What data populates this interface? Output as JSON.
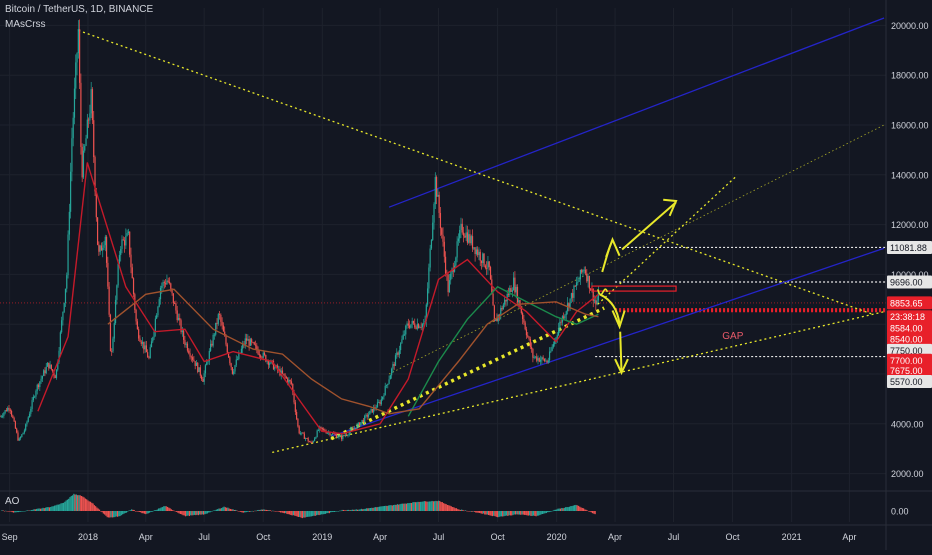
{
  "header": {
    "symbol": "Bitcoin / TetherUS, 1D, BINANCE",
    "indicator": "MAsCrss"
  },
  "ao_pane": {
    "title": "AO",
    "value_label": "0.00"
  },
  "colors": {
    "background": "#131722",
    "grid": "#1e222d",
    "candle_up": "#26a69a",
    "candle_down": "#ef5350",
    "ma_fast": "#c41a2a",
    "ma_mid": "#1b8a4c",
    "ma_slow": "#a0522d",
    "trend_blue": "#2424c8",
    "trend_yellow": "#e8e82a",
    "label_red": "#e8202a",
    "label_white": "#e6e6e6",
    "annotation": "#e8e82a",
    "gap": "#e85a6a"
  },
  "chart_data": {
    "type": "candlestick",
    "title": "Bitcoin / TetherUS, 1D, BINANCE",
    "x_ticks": [
      "Sep",
      "2018",
      "Apr",
      "Jul",
      "Oct",
      "2019",
      "Apr",
      "Jul",
      "Oct",
      "2020",
      "Apr",
      "Jul",
      "Oct",
      "2021",
      "Apr"
    ],
    "y_ticks": [
      2000,
      4000,
      6000,
      8000,
      10000,
      12000,
      14000,
      16000,
      18000,
      20000
    ],
    "y_tick_labels": [
      "2000.00",
      "4000.00",
      "6000.00",
      "8000.00",
      "10000.00",
      "12000.00",
      "14000.00",
      "16000.00",
      "18000.00",
      "20000.00"
    ],
    "ylim": [
      1300,
      20700
    ],
    "x_range": [
      "2017-08-17",
      "2021-05-28"
    ],
    "price_path": [
      [
        "2017-08-17",
        4300
      ],
      [
        "2017-09-01",
        4700
      ],
      [
        "2017-09-15",
        3300
      ],
      [
        "2017-09-25",
        3800
      ],
      [
        "2017-10-12",
        5400
      ],
      [
        "2017-10-31",
        6400
      ],
      [
        "2017-11-12",
        5900
      ],
      [
        "2017-11-29",
        10000
      ],
      [
        "2017-12-07",
        15500
      ],
      [
        "2017-12-17",
        19800
      ],
      [
        "2017-12-22",
        14000
      ],
      [
        "2018-01-06",
        17100
      ],
      [
        "2018-01-17",
        10700
      ],
      [
        "2018-01-28",
        11600
      ],
      [
        "2018-02-06",
        6500
      ],
      [
        "2018-02-20",
        11200
      ],
      [
        "2018-03-05",
        11500
      ],
      [
        "2018-03-18",
        7800
      ],
      [
        "2018-04-06",
        6600
      ],
      [
        "2018-04-24",
        9500
      ],
      [
        "2018-05-05",
        9800
      ],
      [
        "2018-05-30",
        7400
      ],
      [
        "2018-06-29",
        5800
      ],
      [
        "2018-07-24",
        8400
      ],
      [
        "2018-08-14",
        6100
      ],
      [
        "2018-09-04",
        7400
      ],
      [
        "2018-10-10",
        6500
      ],
      [
        "2018-11-14",
        5600
      ],
      [
        "2018-11-25",
        3700
      ],
      [
        "2018-12-15",
        3200
      ],
      [
        "2018-12-27",
        3800
      ],
      [
        "2019-01-31",
        3450
      ],
      [
        "2019-02-24",
        3900
      ],
      [
        "2019-04-02",
        4900
      ],
      [
        "2019-05-14",
        8000
      ],
      [
        "2019-06-10",
        8000
      ],
      [
        "2019-06-26",
        13800
      ],
      [
        "2019-07-16",
        9400
      ],
      [
        "2019-08-06",
        11900
      ],
      [
        "2019-09-18",
        10200
      ],
      [
        "2019-09-26",
        8000
      ],
      [
        "2019-10-26",
        9700
      ],
      [
        "2019-11-25",
        6700
      ],
      [
        "2019-12-18",
        6500
      ],
      [
        "2020-01-07",
        8100
      ],
      [
        "2020-02-13",
        10300
      ],
      [
        "2020-03-02",
        8800
      ],
      [
        "2020-03-06",
        9100
      ]
    ],
    "moving_averages": [
      {
        "id": "ma_fast",
        "points": [
          [
            "2017-10-15",
            4500
          ],
          [
            "2017-12-01",
            7500
          ],
          [
            "2017-12-31",
            14500
          ],
          [
            "2018-01-20",
            12800
          ],
          [
            "2018-03-01",
            9500
          ],
          [
            "2018-04-15",
            7700
          ],
          [
            "2018-06-01",
            7800
          ],
          [
            "2018-07-01",
            6500
          ],
          [
            "2018-08-15",
            6900
          ],
          [
            "2018-10-15",
            6500
          ],
          [
            "2018-11-25",
            5000
          ],
          [
            "2018-12-31",
            3700
          ],
          [
            "2019-02-01",
            3600
          ],
          [
            "2019-04-01",
            4000
          ],
          [
            "2019-05-15",
            5800
          ],
          [
            "2019-07-01",
            9800
          ],
          [
            "2019-08-15",
            10600
          ],
          [
            "2019-10-01",
            9300
          ],
          [
            "2019-11-15",
            8500
          ],
          [
            "2019-12-31",
            7300
          ],
          [
            "2020-02-01",
            8500
          ],
          [
            "2020-03-06",
            9200
          ]
        ]
      },
      {
        "id": "ma_mid",
        "points": [
          [
            "2019-05-15",
            4300
          ],
          [
            "2019-07-01",
            6500
          ],
          [
            "2019-08-15",
            8200
          ],
          [
            "2019-10-01",
            9500
          ],
          [
            "2019-11-15",
            8900
          ],
          [
            "2019-12-31",
            8300
          ],
          [
            "2020-02-01",
            8000
          ],
          [
            "2020-03-06",
            8400
          ]
        ]
      },
      {
        "id": "ma_slow",
        "points": [
          [
            "2018-02-01",
            8000
          ],
          [
            "2018-04-01",
            9200
          ],
          [
            "2018-05-15",
            9400
          ],
          [
            "2018-07-15",
            7800
          ],
          [
            "2018-09-15",
            7000
          ],
          [
            "2018-10-31",
            6800
          ],
          [
            "2018-12-15",
            5800
          ],
          [
            "2019-01-31",
            5000
          ],
          [
            "2019-03-15",
            4700
          ],
          [
            "2019-04-15",
            4400
          ],
          [
            "2019-06-01",
            4600
          ],
          [
            "2019-08-01",
            6500
          ],
          [
            "2019-09-15",
            8000
          ],
          [
            "2019-11-01",
            8800
          ],
          [
            "2019-12-31",
            8900
          ],
          [
            "2020-02-15",
            8400
          ],
          [
            "2020-03-06",
            8300
          ]
        ]
      }
    ],
    "trend_lines": [
      {
        "id": "upper-channel-blue",
        "color": "trend_blue",
        "style": "solid",
        "from": [
          "2019-04-15",
          12700
        ],
        "to": [
          "2021-05-25",
          20300
        ]
      },
      {
        "id": "lower-channel-blue",
        "color": "trend_blue",
        "style": "solid",
        "from": [
          "2019-01-15",
          3500
        ],
        "to": [
          "2021-05-25",
          11050
        ]
      },
      {
        "id": "main-downtrend",
        "color": "trend_yellow",
        "style": "dotted",
        "from": [
          "2017-12-17",
          19800
        ],
        "to": [
          "2021-05-05",
          8420
        ]
      },
      {
        "id": "bold-uptrend",
        "color": "trend_yellow",
        "style": "dotted-bold",
        "from": [
          "2019-01-15",
          3400
        ],
        "to": [
          "2020-03-15",
          8650
        ]
      },
      {
        "id": "long-support",
        "color": "trend_yellow",
        "style": "dotted",
        "from": [
          "2018-10-15",
          2850
        ],
        "to": [
          "2021-05-25",
          8500
        ]
      },
      {
        "id": "middle-channel",
        "color": "trend_yellow",
        "style": "dotted-thin",
        "from": [
          "2019-04-15",
          6000
        ],
        "to": [
          "2021-05-25",
          16000
        ]
      },
      {
        "id": "fan-up",
        "color": "trend_yellow",
        "style": "dotted",
        "from": [
          "2020-03-05",
          8800
        ],
        "to": [
          "2020-10-05",
          13900
        ]
      }
    ],
    "horizontal_levels": [
      {
        "price": 11081.88,
        "color": "label_white",
        "from": "2020-04-01"
      },
      {
        "price": 9696.0,
        "color": "label_white",
        "from": "2020-04-01"
      },
      {
        "price": 8853.65,
        "color": "label_red",
        "from": "2017-08-17",
        "style": "thin"
      },
      {
        "price": 8584.0,
        "color": "label_red",
        "from": "2020-04-01",
        "style": "bold"
      },
      {
        "price": 8540.0,
        "color": "label_red",
        "from": "2020-04-01",
        "style": "bold"
      },
      {
        "price": 6700,
        "color": "label_white",
        "from": "2020-03-01"
      }
    ],
    "price_labels": [
      {
        "text": "11081.88",
        "price": 11081.88,
        "style": "white"
      },
      {
        "text": "9696.00",
        "price": 9696.0,
        "style": "white"
      },
      {
        "text": "8853.65",
        "price": 8853.65,
        "style": "red"
      },
      {
        "text": "23:38:18",
        "price": 8300,
        "style": "red"
      },
      {
        "text": "8584.00",
        "price": 7850,
        "style": "red"
      },
      {
        "text": "8540.00",
        "price": 7400,
        "style": "red"
      },
      {
        "text": "7750.00",
        "price": 6950,
        "style": "white"
      },
      {
        "text": "7700.00",
        "price": 6550,
        "style": "red"
      },
      {
        "text": "7675.00",
        "price": 6150,
        "style": "red"
      },
      {
        "text": "5570.00",
        "price": 5700,
        "style": "white"
      }
    ],
    "annotations": [
      {
        "text": "GAP",
        "date": "2020-09-15",
        "price": 7400
      }
    ],
    "ao_histogram": [
      [
        "2017-08-20",
        0.05
      ],
      [
        "2017-09-10",
        -0.1
      ],
      [
        "2017-10-10",
        0.1
      ],
      [
        "2017-11-05",
        0.25
      ],
      [
        "2017-11-25",
        0.5
      ],
      [
        "2017-12-10",
        1.0
      ],
      [
        "2017-12-22",
        0.9
      ],
      [
        "2018-01-10",
        0.4
      ],
      [
        "2018-02-01",
        -0.4
      ],
      [
        "2018-02-20",
        -0.3
      ],
      [
        "2018-03-10",
        0.1
      ],
      [
        "2018-04-01",
        -0.2
      ],
      [
        "2018-05-01",
        0.3
      ],
      [
        "2018-06-01",
        -0.3
      ],
      [
        "2018-07-01",
        -0.2
      ],
      [
        "2018-08-01",
        0.25
      ],
      [
        "2018-09-01",
        -0.1
      ],
      [
        "2018-10-01",
        0.1
      ],
      [
        "2018-11-01",
        -0.1
      ],
      [
        "2018-12-01",
        -0.4
      ],
      [
        "2019-01-01",
        -0.2
      ],
      [
        "2019-02-01",
        0.05
      ],
      [
        "2019-03-01",
        0.1
      ],
      [
        "2019-04-01",
        0.25
      ],
      [
        "2019-05-01",
        0.4
      ],
      [
        "2019-06-01",
        0.55
      ],
      [
        "2019-07-01",
        0.6
      ],
      [
        "2019-08-01",
        0.1
      ],
      [
        "2019-09-01",
        -0.1
      ],
      [
        "2019-10-01",
        -0.35
      ],
      [
        "2019-11-01",
        -0.2
      ],
      [
        "2019-12-01",
        -0.3
      ],
      [
        "2020-01-01",
        0.1
      ],
      [
        "2020-02-01",
        0.35
      ],
      [
        "2020-03-01",
        -0.2
      ]
    ]
  }
}
